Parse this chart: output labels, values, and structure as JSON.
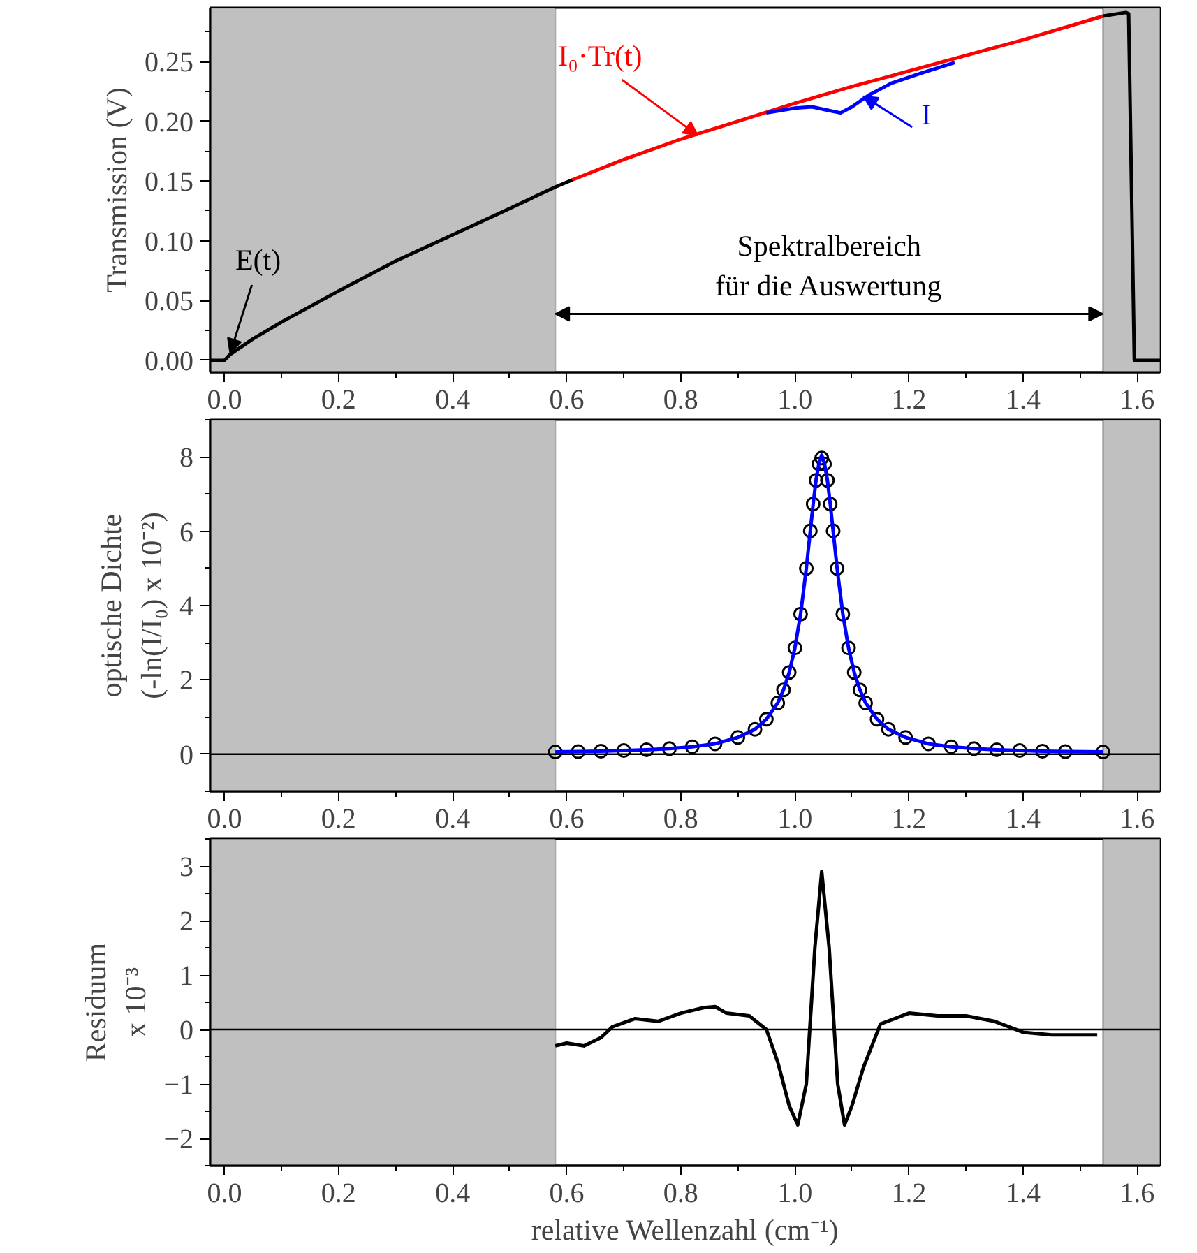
{
  "chart_data": [
    {
      "type": "line",
      "ylabel": "Transmission (V)",
      "xlim": [
        -0.025,
        1.64
      ],
      "ylim": [
        -0.01,
        0.295
      ],
      "xticks": [
        {
          "value": 0,
          "label": "0.0"
        },
        {
          "value": 0.2,
          "label": "0.2"
        },
        {
          "value": 0.4,
          "label": "0.4"
        },
        {
          "value": 0.6,
          "label": "0.6"
        },
        {
          "value": 0.8,
          "label": "0.8"
        },
        {
          "value": 1.0,
          "label": "1.0"
        },
        {
          "value": 1.2,
          "label": "1.2"
        },
        {
          "value": 1.4,
          "label": "1.4"
        },
        {
          "value": 1.6,
          "label": "1.6"
        }
      ],
      "yticks": [
        {
          "value": 0,
          "label": "0.00"
        },
        {
          "value": 0.05,
          "label": "0.05"
        },
        {
          "value": 0.1,
          "label": "0.10"
        },
        {
          "value": 0.15,
          "label": "0.15"
        },
        {
          "value": 0.2,
          "label": "0.20"
        },
        {
          "value": 0.25,
          "label": "0.25"
        }
      ],
      "bands": [
        {
          "axis": "x",
          "from": -0.025,
          "to": 0.58,
          "color": "#c0c0c0"
        },
        {
          "axis": "x",
          "from": 1.54,
          "to": 1.64,
          "color": "#c0c0c0"
        }
      ],
      "series": [
        {
          "color": "#000000",
          "x": [
            -0.025,
            0.0,
            0.01,
            0.05,
            0.1,
            0.2,
            0.3,
            0.4,
            0.5,
            0.58,
            0.61,
            0.62,
            1.54,
            1.58,
            1.585,
            1.595,
            1.64
          ],
          "values": [
            0,
            0,
            0.005,
            0.018,
            0.032,
            0.058,
            0.083,
            0.105,
            0.127,
            0.145,
            0.151,
            null,
            0.288,
            0.291,
            0.29,
            0.0,
            0
          ]
        },
        {
          "color": "#ff0000",
          "x": [
            0.61,
            0.7,
            0.8,
            0.9,
            1.0,
            1.1,
            1.2,
            1.3,
            1.4,
            1.54
          ],
          "values": [
            0.151,
            0.168,
            0.185,
            0.2,
            0.215,
            0.229,
            0.242,
            0.255,
            0.268,
            0.288
          ]
        },
        {
          "color": "#0000ff",
          "x": [
            0.95,
            1.0,
            1.03,
            1.06,
            1.08,
            1.1,
            1.13,
            1.17,
            1.22,
            1.28
          ],
          "values": [
            0.207,
            0.211,
            0.212,
            0.209,
            0.207,
            0.212,
            0.222,
            0.232,
            0.24,
            0.249
          ]
        }
      ],
      "annotations": [
        {
          "text": "E(t)",
          "x": 0.01,
          "y": 0.006
        },
        {
          "text": "I₀·Tr(t)",
          "x": 0.83,
          "y": 0.188
        },
        {
          "text": "I",
          "x": 1.12,
          "y": 0.221
        },
        "Spektralbereich\nfür die Auswertung"
      ]
    },
    {
      "type": "line",
      "ylabel": "optische Dichte\n(-ln(I/I₀) x 10⁻²)",
      "xlim": [
        -0.025,
        1.64
      ],
      "ylim": [
        -1,
        9
      ],
      "xticks": [
        {
          "value": 0,
          "label": "0.0"
        },
        {
          "value": 0.2,
          "label": "0.2"
        },
        {
          "value": 0.4,
          "label": "0.4"
        },
        {
          "value": 0.6,
          "label": "0.6"
        },
        {
          "value": 0.8,
          "label": "0.8"
        },
        {
          "value": 1.0,
          "label": "1.0"
        },
        {
          "value": 1.2,
          "label": "1.2"
        },
        {
          "value": 1.4,
          "label": "1.4"
        },
        {
          "value": 1.6,
          "label": "1.6"
        }
      ],
      "yticks": [
        0,
        2,
        4,
        6,
        8
      ],
      "bands": [
        {
          "axis": "x",
          "from": -0.025,
          "to": 0.58,
          "color": "#c0c0c0"
        },
        {
          "axis": "x",
          "from": 1.54,
          "to": 1.64,
          "color": "#c0c0c0"
        }
      ],
      "ref_lines": [
        {
          "axis": "y",
          "value": 0
        }
      ],
      "series": [
        {
          "type": "scatter",
          "marker": "circle",
          "color": "#000000",
          "x": [
            0.58,
            0.62,
            0.66,
            0.7,
            0.74,
            0.78,
            0.82,
            0.86,
            0.9,
            0.93,
            0.95,
            0.97,
            0.98,
            0.99,
            1.0,
            1.01,
            1.02,
            1.027,
            1.032,
            1.037,
            1.042,
            1.047,
            1.052,
            1.057,
            1.062,
            1.067,
            1.074,
            1.084,
            1.094,
            1.104,
            1.114,
            1.124,
            1.144,
            1.164,
            1.194,
            1.234,
            1.274,
            1.314,
            1.354,
            1.394,
            1.434,
            1.474,
            1.54
          ],
          "values": [
            0.06,
            0.07,
            0.08,
            0.1,
            0.12,
            0.15,
            0.2,
            0.28,
            0.45,
            0.67,
            0.94,
            1.38,
            1.73,
            2.2,
            2.86,
            3.77,
            5.0,
            6.01,
            6.73,
            7.37,
            7.81,
            7.97,
            7.81,
            7.37,
            6.73,
            6.01,
            5.0,
            3.77,
            2.86,
            2.2,
            1.73,
            1.38,
            0.94,
            0.67,
            0.45,
            0.28,
            0.2,
            0.15,
            0.12,
            0.1,
            0.08,
            0.07,
            0.06
          ]
        },
        {
          "color": "#0000ff",
          "x": [
            0.58,
            0.62,
            0.66,
            0.7,
            0.74,
            0.78,
            0.82,
            0.86,
            0.9,
            0.93,
            0.95,
            0.97,
            0.98,
            0.99,
            1.0,
            1.01,
            1.02,
            1.027,
            1.032,
            1.037,
            1.042,
            1.047,
            1.052,
            1.057,
            1.062,
            1.067,
            1.074,
            1.084,
            1.094,
            1.104,
            1.114,
            1.124,
            1.144,
            1.164,
            1.194,
            1.234,
            1.274,
            1.314,
            1.354,
            1.394,
            1.434,
            1.474,
            1.54
          ],
          "values": [
            0.06,
            0.07,
            0.08,
            0.1,
            0.12,
            0.15,
            0.2,
            0.28,
            0.45,
            0.67,
            0.94,
            1.38,
            1.73,
            2.2,
            2.86,
            3.77,
            5.0,
            6.01,
            6.73,
            7.37,
            7.81,
            8.05,
            7.81,
            7.37,
            6.73,
            6.01,
            5.0,
            3.77,
            2.86,
            2.2,
            1.73,
            1.38,
            0.94,
            0.67,
            0.45,
            0.28,
            0.2,
            0.15,
            0.12,
            0.1,
            0.08,
            0.07,
            0.06
          ]
        }
      ]
    },
    {
      "type": "line",
      "ylabel": "Residuum\nx 10⁻³",
      "xlabel": "relative Wellenzahl (cm⁻¹)",
      "xlim": [
        -0.025,
        1.64
      ],
      "ylim": [
        -2.5,
        3.5
      ],
      "xticks": [
        {
          "value": 0,
          "label": "0.0"
        },
        {
          "value": 0.2,
          "label": "0.2"
        },
        {
          "value": 0.4,
          "label": "0.4"
        },
        {
          "value": 0.6,
          "label": "0.6"
        },
        {
          "value": 0.8,
          "label": "0.8"
        },
        {
          "value": 1.0,
          "label": "1.0"
        },
        {
          "value": 1.2,
          "label": "1.2"
        },
        {
          "value": 1.4,
          "label": "1.4"
        },
        {
          "value": 1.6,
          "label": "1.6"
        }
      ],
      "yticks": [
        -2,
        -1,
        0,
        1,
        2,
        3
      ],
      "bands": [
        {
          "axis": "x",
          "from": -0.025,
          "to": 0.58,
          "color": "#c0c0c0"
        },
        {
          "axis": "x",
          "from": 1.54,
          "to": 1.64,
          "color": "#c0c0c0"
        }
      ],
      "ref_lines": [
        {
          "axis": "y",
          "value": 0
        }
      ],
      "series": [
        {
          "color": "#000000",
          "x": [
            0.58,
            0.6,
            0.63,
            0.66,
            0.68,
            0.72,
            0.76,
            0.8,
            0.84,
            0.86,
            0.88,
            0.92,
            0.95,
            0.97,
            0.99,
            1.005,
            1.02,
            1.035,
            1.047,
            1.06,
            1.075,
            1.087,
            1.1,
            1.12,
            1.15,
            1.2,
            1.25,
            1.3,
            1.35,
            1.4,
            1.45,
            1.5,
            1.53
          ],
          "values": [
            -0.3,
            -0.25,
            -0.3,
            -0.15,
            0.05,
            0.2,
            0.15,
            0.3,
            0.4,
            0.42,
            0.3,
            0.25,
            0.0,
            -0.6,
            -1.4,
            -1.75,
            -1.0,
            1.5,
            2.9,
            1.5,
            -1.0,
            -1.75,
            -1.4,
            -0.7,
            0.1,
            0.3,
            0.25,
            0.25,
            0.15,
            -0.05,
            -0.1,
            -0.1,
            -0.1
          ]
        }
      ]
    }
  ]
}
